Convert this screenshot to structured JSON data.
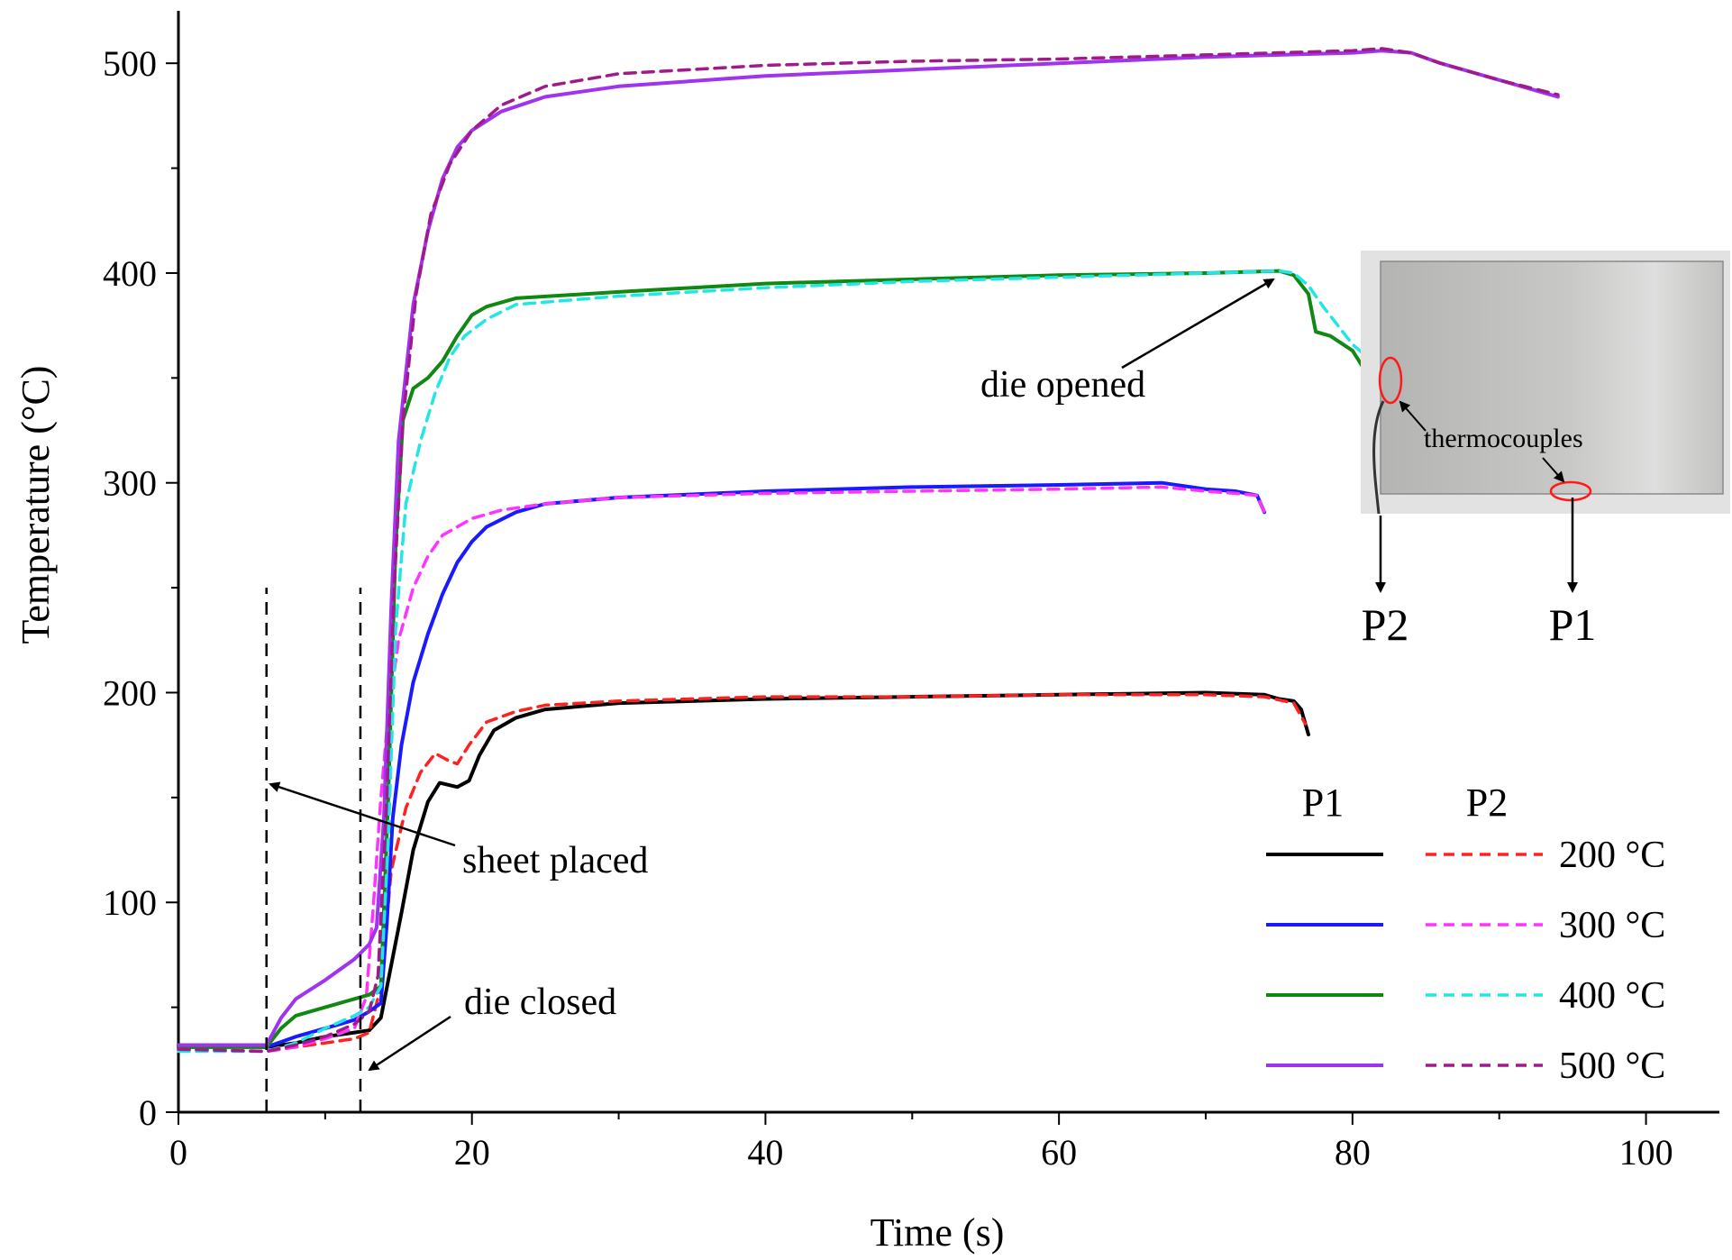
{
  "chart_data": {
    "type": "line",
    "xlabel": "Time (s)",
    "ylabel": "Temperature (°C)",
    "xlim": [
      0,
      105
    ],
    "ylim": [
      0,
      525
    ],
    "xticks": [
      0,
      20,
      40,
      60,
      80,
      100
    ],
    "yticks": [
      0,
      100,
      200,
      300,
      400,
      500
    ],
    "grid": false,
    "legend": {
      "placement": "bottom-right",
      "col_headers": [
        "P1",
        "P2"
      ],
      "rows": [
        {
          "label": "200 °C",
          "p1_color": "#000000",
          "p2_color": "#ff2020"
        },
        {
          "label": "300 °C",
          "p1_color": "#1a1aff",
          "p2_color": "#ff33ff"
        },
        {
          "label": "400 °C",
          "p1_color": "#118811",
          "p2_color": "#22e5e5"
        },
        {
          "label": "500 °C",
          "p1_color": "#a033ee",
          "p2_color": "#a01a8a"
        }
      ]
    },
    "series": [
      {
        "key": "p1_200",
        "group": "P1",
        "style": "solid",
        "color": "#000000",
        "points": [
          [
            0,
            32
          ],
          [
            6,
            31
          ],
          [
            8,
            33
          ],
          [
            10,
            36
          ],
          [
            12,
            38
          ],
          [
            13,
            39
          ],
          [
            13.8,
            45
          ],
          [
            14.5,
            70
          ],
          [
            15.2,
            95
          ],
          [
            16,
            125
          ],
          [
            17,
            148
          ],
          [
            17.8,
            157
          ],
          [
            19,
            155
          ],
          [
            19.8,
            158
          ],
          [
            20.5,
            170
          ],
          [
            21.5,
            182
          ],
          [
            23,
            188
          ],
          [
            25,
            192
          ],
          [
            30,
            195
          ],
          [
            40,
            197
          ],
          [
            50,
            198
          ],
          [
            60,
            199
          ],
          [
            70,
            200
          ],
          [
            74,
            199
          ],
          [
            75,
            197
          ],
          [
            76,
            196
          ],
          [
            76.5,
            192
          ],
          [
            77,
            180
          ]
        ]
      },
      {
        "key": "p2_200",
        "group": "P2",
        "style": "dashed",
        "color": "#ff2020",
        "points": [
          [
            0,
            30
          ],
          [
            6,
            29
          ],
          [
            8,
            31
          ],
          [
            10,
            33
          ],
          [
            12,
            35
          ],
          [
            13,
            38
          ],
          [
            13.8,
            60
          ],
          [
            14.5,
            115
          ],
          [
            15.5,
            145
          ],
          [
            16.5,
            162
          ],
          [
            17.5,
            171
          ],
          [
            18.3,
            168
          ],
          [
            19,
            166
          ],
          [
            19.8,
            175
          ],
          [
            21,
            186
          ],
          [
            23,
            191
          ],
          [
            25,
            194
          ],
          [
            30,
            196
          ],
          [
            40,
            198
          ],
          [
            50,
            198
          ],
          [
            60,
            199
          ],
          [
            70,
            199
          ],
          [
            74,
            198
          ],
          [
            76,
            195
          ],
          [
            76.8,
            185
          ]
        ]
      },
      {
        "key": "p1_300",
        "group": "P1",
        "style": "solid",
        "color": "#1a1aff",
        "points": [
          [
            0,
            31
          ],
          [
            6,
            31
          ],
          [
            8,
            36
          ],
          [
            10,
            40
          ],
          [
            12,
            44
          ],
          [
            13,
            48
          ],
          [
            13.8,
            52
          ],
          [
            14.2,
            90
          ],
          [
            14.6,
            140
          ],
          [
            15.2,
            175
          ],
          [
            16,
            205
          ],
          [
            17,
            228
          ],
          [
            18,
            247
          ],
          [
            19,
            262
          ],
          [
            20,
            272
          ],
          [
            21,
            279
          ],
          [
            23,
            286
          ],
          [
            25,
            290
          ],
          [
            30,
            293
          ],
          [
            40,
            296
          ],
          [
            50,
            298
          ],
          [
            60,
            299
          ],
          [
            67,
            300
          ],
          [
            70,
            297
          ],
          [
            72,
            296
          ],
          [
            73.5,
            294
          ],
          [
            74,
            286
          ]
        ]
      },
      {
        "key": "p2_300",
        "group": "P2",
        "style": "dashed",
        "color": "#ff33ff",
        "points": [
          [
            0,
            30
          ],
          [
            6,
            29
          ],
          [
            8,
            31
          ],
          [
            10,
            35
          ],
          [
            12,
            40
          ],
          [
            12.8,
            55
          ],
          [
            13.3,
            100
          ],
          [
            13.8,
            150
          ],
          [
            14.3,
            190
          ],
          [
            15,
            225
          ],
          [
            16,
            250
          ],
          [
            17,
            265
          ],
          [
            18,
            275
          ],
          [
            20,
            283
          ],
          [
            22,
            287
          ],
          [
            25,
            290
          ],
          [
            30,
            293
          ],
          [
            40,
            295
          ],
          [
            50,
            296
          ],
          [
            60,
            297
          ],
          [
            67,
            298
          ],
          [
            70,
            296
          ],
          [
            72,
            295
          ],
          [
            73.5,
            294
          ],
          [
            74,
            286
          ]
        ]
      },
      {
        "key": "p1_400",
        "group": "P1",
        "style": "solid",
        "color": "#118811",
        "points": [
          [
            0,
            31
          ],
          [
            6,
            31
          ],
          [
            7,
            40
          ],
          [
            8,
            46
          ],
          [
            10,
            50
          ],
          [
            12,
            54
          ],
          [
            13,
            56
          ],
          [
            13.8,
            60
          ],
          [
            14.3,
            150
          ],
          [
            14.8,
            270
          ],
          [
            15.3,
            330
          ],
          [
            16,
            345
          ],
          [
            17,
            350
          ],
          [
            18,
            358
          ],
          [
            19,
            370
          ],
          [
            20,
            380
          ],
          [
            21,
            384
          ],
          [
            23,
            388
          ],
          [
            30,
            391
          ],
          [
            40,
            395
          ],
          [
            50,
            397
          ],
          [
            60,
            399
          ],
          [
            70,
            400
          ],
          [
            75,
            401
          ],
          [
            76,
            399
          ],
          [
            77,
            390
          ],
          [
            77.5,
            372
          ],
          [
            78.5,
            370
          ],
          [
            80,
            363
          ],
          [
            81,
            352
          ]
        ]
      },
      {
        "key": "p2_400",
        "group": "P2",
        "style": "dashed",
        "color": "#22e5e5",
        "points": [
          [
            0,
            29
          ],
          [
            6,
            29
          ],
          [
            8,
            33
          ],
          [
            10,
            40
          ],
          [
            12,
            46
          ],
          [
            13,
            50
          ],
          [
            13.8,
            60
          ],
          [
            14.3,
            130
          ],
          [
            14.8,
            230
          ],
          [
            15.5,
            290
          ],
          [
            16.5,
            320
          ],
          [
            17.5,
            343
          ],
          [
            18.5,
            360
          ],
          [
            19.5,
            370
          ],
          [
            21,
            378
          ],
          [
            23,
            385
          ],
          [
            30,
            389
          ],
          [
            40,
            393
          ],
          [
            50,
            396
          ],
          [
            60,
            398
          ],
          [
            70,
            400
          ],
          [
            75,
            401
          ],
          [
            76,
            400
          ],
          [
            77,
            394
          ],
          [
            78,
            384
          ],
          [
            79,
            375
          ],
          [
            80,
            366
          ],
          [
            81,
            360
          ]
        ]
      },
      {
        "key": "p1_500",
        "group": "P1",
        "style": "solid",
        "color": "#a033ee",
        "points": [
          [
            0,
            32
          ],
          [
            6,
            32
          ],
          [
            7,
            45
          ],
          [
            8,
            54
          ],
          [
            10,
            63
          ],
          [
            12,
            73
          ],
          [
            13,
            80
          ],
          [
            13.5,
            88
          ],
          [
            14,
            140
          ],
          [
            14.5,
            240
          ],
          [
            15,
            320
          ],
          [
            16,
            385
          ],
          [
            17,
            420
          ],
          [
            18,
            445
          ],
          [
            19,
            460
          ],
          [
            20,
            468
          ],
          [
            22,
            477
          ],
          [
            25,
            484
          ],
          [
            30,
            489
          ],
          [
            40,
            494
          ],
          [
            50,
            497
          ],
          [
            60,
            500
          ],
          [
            70,
            503
          ],
          [
            80,
            505
          ],
          [
            82,
            506
          ],
          [
            84,
            505
          ],
          [
            86,
            500
          ],
          [
            90,
            492
          ],
          [
            94,
            484
          ]
        ]
      },
      {
        "key": "p2_500",
        "group": "P2",
        "style": "dashed",
        "color": "#a01a8a",
        "points": [
          [
            0,
            30
          ],
          [
            6,
            29
          ],
          [
            8,
            32
          ],
          [
            10,
            36
          ],
          [
            12,
            42
          ],
          [
            13,
            48
          ],
          [
            13.6,
            65
          ],
          [
            14.2,
            150
          ],
          [
            14.7,
            250
          ],
          [
            15.3,
            330
          ],
          [
            16.2,
            390
          ],
          [
            17.2,
            428
          ],
          [
            18.5,
            452
          ],
          [
            20,
            468
          ],
          [
            22,
            480
          ],
          [
            25,
            489
          ],
          [
            30,
            495
          ],
          [
            40,
            499
          ],
          [
            50,
            501
          ],
          [
            60,
            502
          ],
          [
            70,
            504
          ],
          [
            80,
            506
          ],
          [
            82,
            507
          ],
          [
            84,
            505
          ],
          [
            86,
            500
          ],
          [
            90,
            492
          ],
          [
            94,
            485
          ]
        ]
      }
    ],
    "vlines": [
      {
        "x": 6,
        "y_top": 250
      },
      {
        "x": 12.4,
        "y_top": 250
      }
    ],
    "annotations": [
      {
        "key": "sheet_placed",
        "text": "sheet placed"
      },
      {
        "key": "die_closed",
        "text": "die closed"
      },
      {
        "key": "die_opened",
        "text": "die opened"
      }
    ],
    "inset": {
      "caption": "thermocouples",
      "labels": [
        "P2",
        "P1"
      ]
    }
  }
}
